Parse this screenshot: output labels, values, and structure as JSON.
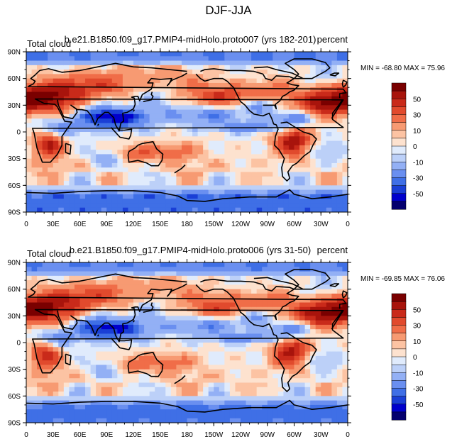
{
  "figure": {
    "title": "DJF-JJA"
  },
  "colors": {
    "levels": [
      -60,
      -50,
      -40,
      -30,
      -20,
      -10,
      -5,
      0,
      5,
      10,
      20,
      30,
      40,
      50,
      60
    ],
    "palette": [
      "#04006e",
      "#0000cc",
      "#1a3fd6",
      "#3f6fe6",
      "#6a8ff0",
      "#93b0f5",
      "#bcd0f8",
      "#e0ebfc",
      "#fde2cf",
      "#fcc3a3",
      "#f79a72",
      "#f06d48",
      "#e14a2d",
      "#c92a1a",
      "#a8140c",
      "#7a0000"
    ],
    "land_outline": "#000000"
  },
  "panels": [
    {
      "left_label": "Total cloud",
      "center_label": "b.e21.B1850.f09_g17.PMIP4-midHolo.proto007 (yrs 182-201)",
      "right_label": "percent",
      "stats": "MIN = -68.80 MAX =  75.96",
      "x_ticks": [
        "0",
        "30E",
        "60E",
        "90E",
        "120E",
        "150E",
        "180",
        "150W",
        "120W",
        "90W",
        "60W",
        "30W",
        "0"
      ],
      "y_ticks": [
        "90N",
        "60N",
        "30N",
        "0",
        "30S",
        "60S",
        "90S"
      ],
      "colorbar_labels": [
        "50",
        "30",
        "10",
        "0",
        "-10",
        "-30",
        "-50"
      ]
    },
    {
      "left_label": "Total cloud",
      "center_label": "b.e21.B1850.f09_g17.PMIP4-midHolo.proto006 (yrs 31-50)",
      "right_label": "percent",
      "stats": "MIN = -69.85 MAX =  76.06",
      "x_ticks": [
        "0",
        "30E",
        "60E",
        "90E",
        "120E",
        "150E",
        "180",
        "150W",
        "120W",
        "90W",
        "60W",
        "30W",
        "0"
      ],
      "y_ticks": [
        "90N",
        "60N",
        "30N",
        "0",
        "30S",
        "60S",
        "90S"
      ],
      "colorbar_labels": [
        "50",
        "30",
        "10",
        "0",
        "-10",
        "-30",
        "-50"
      ]
    }
  ]
}
